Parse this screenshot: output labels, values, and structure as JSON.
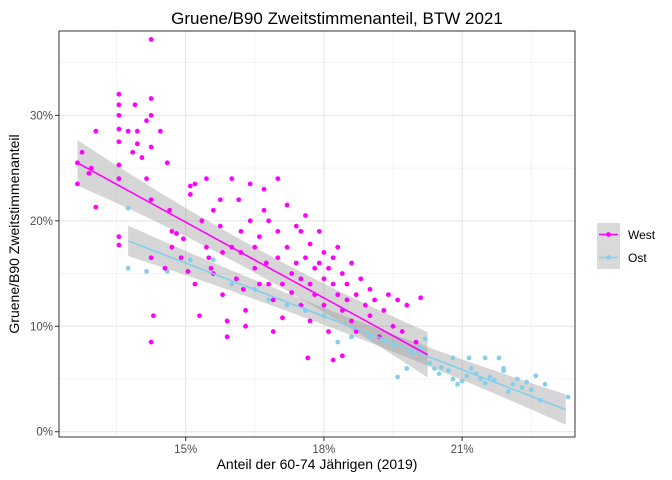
{
  "chart_data": {
    "type": "scatter",
    "title": "Gruene/B90 Zweitstimmenanteil, BTW 2021",
    "xlabel": "Anteil der 60-74 Jährigen (2019)",
    "ylabel": "Gruene/B90 Zweitstimmenanteil",
    "xlim": [
      0.1225,
      0.2345
    ],
    "ylim": [
      -0.005,
      0.38
    ],
    "x_ticks": [
      {
        "value": 0.15,
        "label": "15%"
      },
      {
        "value": 0.18,
        "label": "18%"
      },
      {
        "value": 0.21,
        "label": "21%"
      }
    ],
    "y_ticks": [
      {
        "value": 0.0,
        "label": "0%"
      },
      {
        "value": 0.1,
        "label": "10%"
      },
      {
        "value": 0.2,
        "label": "20%"
      },
      {
        "value": 0.3,
        "label": "30%"
      }
    ],
    "grid": true,
    "legend_position": "right",
    "series": [
      {
        "name": "West",
        "color": "#ff00ff",
        "trend": {
          "x": [
            0.1265,
            0.2025
          ],
          "y": [
            0.255,
            0.073
          ],
          "band": 0.012
        },
        "points": [
          [
            0.1265,
            0.255
          ],
          [
            0.1265,
            0.235
          ],
          [
            0.1275,
            0.265
          ],
          [
            0.129,
            0.245
          ],
          [
            0.1295,
            0.25
          ],
          [
            0.1305,
            0.285
          ],
          [
            0.1305,
            0.213
          ],
          [
            0.1355,
            0.32
          ],
          [
            0.1355,
            0.31
          ],
          [
            0.1355,
            0.3
          ],
          [
            0.1355,
            0.287
          ],
          [
            0.1355,
            0.275
          ],
          [
            0.1355,
            0.253
          ],
          [
            0.1355,
            0.24
          ],
          [
            0.1355,
            0.185
          ],
          [
            0.1355,
            0.177
          ],
          [
            0.1375,
            0.285
          ],
          [
            0.1385,
            0.265
          ],
          [
            0.139,
            0.31
          ],
          [
            0.1395,
            0.285
          ],
          [
            0.1395,
            0.273
          ],
          [
            0.1405,
            0.26
          ],
          [
            0.1415,
            0.295
          ],
          [
            0.1415,
            0.24
          ],
          [
            0.1425,
            0.372
          ],
          [
            0.1425,
            0.316
          ],
          [
            0.1425,
            0.3
          ],
          [
            0.1425,
            0.27
          ],
          [
            0.1425,
            0.22
          ],
          [
            0.1425,
            0.165
          ],
          [
            0.1425,
            0.085
          ],
          [
            0.143,
            0.11
          ],
          [
            0.1445,
            0.285
          ],
          [
            0.1455,
            0.155
          ],
          [
            0.146,
            0.255
          ],
          [
            0.147,
            0.19
          ],
          [
            0.147,
            0.175
          ],
          [
            0.148,
            0.188
          ],
          [
            0.149,
            0.165
          ],
          [
            0.1495,
            0.183
          ],
          [
            0.151,
            0.233
          ],
          [
            0.151,
            0.225
          ],
          [
            0.152,
            0.235
          ],
          [
            0.152,
            0.14
          ],
          [
            0.153,
            0.11
          ],
          [
            0.1535,
            0.2
          ],
          [
            0.1545,
            0.24
          ],
          [
            0.1545,
            0.175
          ],
          [
            0.155,
            0.165
          ],
          [
            0.156,
            0.21
          ],
          [
            0.156,
            0.15
          ],
          [
            0.1575,
            0.22
          ],
          [
            0.1575,
            0.195
          ],
          [
            0.158,
            0.17
          ],
          [
            0.158,
            0.13
          ],
          [
            0.159,
            0.105
          ],
          [
            0.159,
            0.09
          ],
          [
            0.16,
            0.24
          ],
          [
            0.16,
            0.175
          ],
          [
            0.161,
            0.145
          ],
          [
            0.1615,
            0.22
          ],
          [
            0.162,
            0.19
          ],
          [
            0.162,
            0.17
          ],
          [
            0.1625,
            0.135
          ],
          [
            0.163,
            0.115
          ],
          [
            0.163,
            0.1
          ],
          [
            0.164,
            0.235
          ],
          [
            0.164,
            0.2
          ],
          [
            0.165,
            0.175
          ],
          [
            0.165,
            0.155
          ],
          [
            0.166,
            0.185
          ],
          [
            0.166,
            0.14
          ],
          [
            0.167,
            0.23
          ],
          [
            0.167,
            0.21
          ],
          [
            0.1675,
            0.16
          ],
          [
            0.168,
            0.2
          ],
          [
            0.168,
            0.14
          ],
          [
            0.169,
            0.125
          ],
          [
            0.169,
            0.095
          ],
          [
            0.17,
            0.24
          ],
          [
            0.17,
            0.19
          ],
          [
            0.17,
            0.165
          ],
          [
            0.171,
            0.14
          ],
          [
            0.171,
            0.108
          ],
          [
            0.172,
            0.215
          ],
          [
            0.172,
            0.175
          ],
          [
            0.173,
            0.15
          ],
          [
            0.173,
            0.132
          ],
          [
            0.174,
            0.195
          ],
          [
            0.174,
            0.16
          ],
          [
            0.175,
            0.19
          ],
          [
            0.175,
            0.145
          ],
          [
            0.175,
            0.12
          ],
          [
            0.176,
            0.205
          ],
          [
            0.176,
            0.165
          ],
          [
            0.177,
            0.178
          ],
          [
            0.177,
            0.14
          ],
          [
            0.177,
            0.105
          ],
          [
            0.178,
            0.155
          ],
          [
            0.178,
            0.13
          ],
          [
            0.179,
            0.19
          ],
          [
            0.179,
            0.16
          ],
          [
            0.18,
            0.17
          ],
          [
            0.18,
            0.145
          ],
          [
            0.18,
            0.12
          ],
          [
            0.181,
            0.155
          ],
          [
            0.181,
            0.095
          ],
          [
            0.182,
            0.165
          ],
          [
            0.182,
            0.14
          ],
          [
            0.183,
            0.175
          ],
          [
            0.183,
            0.13
          ],
          [
            0.184,
            0.15
          ],
          [
            0.184,
            0.115
          ],
          [
            0.185,
            0.14
          ],
          [
            0.185,
            0.125
          ],
          [
            0.186,
            0.16
          ],
          [
            0.186,
            0.105
          ],
          [
            0.187,
            0.13
          ],
          [
            0.187,
            0.095
          ],
          [
            0.188,
            0.145
          ],
          [
            0.189,
            0.12
          ],
          [
            0.19,
            0.135
          ],
          [
            0.19,
            0.11
          ],
          [
            0.191,
            0.125
          ],
          [
            0.192,
            0.09
          ],
          [
            0.193,
            0.115
          ],
          [
            0.194,
            0.13
          ],
          [
            0.195,
            0.1
          ],
          [
            0.196,
            0.125
          ],
          [
            0.197,
            0.095
          ],
          [
            0.198,
            0.12
          ],
          [
            0.2,
            0.085
          ],
          [
            0.201,
            0.127
          ],
          [
            0.1765,
            0.07
          ],
          [
            0.182,
            0.068
          ],
          [
            0.184,
            0.072
          ],
          [
            0.1555,
            0.155
          ],
          [
            0.1465,
            0.21
          ],
          [
            0.1505,
            0.152
          ]
        ]
      },
      {
        "name": "Ost",
        "color": "#87ceeb",
        "trend": {
          "x": [
            0.1375,
            0.2325
          ],
          "y": [
            0.181,
            0.021
          ],
          "band": 0.008
        },
        "points": [
          [
            0.1375,
            0.212
          ],
          [
            0.1375,
            0.155
          ],
          [
            0.1415,
            0.152
          ],
          [
            0.146,
            0.152
          ],
          [
            0.151,
            0.163
          ],
          [
            0.156,
            0.163
          ],
          [
            0.16,
            0.14
          ],
          [
            0.165,
            0.135
          ],
          [
            0.168,
            0.125
          ],
          [
            0.172,
            0.12
          ],
          [
            0.176,
            0.115
          ],
          [
            0.18,
            0.11
          ],
          [
            0.183,
            0.085
          ],
          [
            0.186,
            0.09
          ],
          [
            0.19,
            0.09
          ],
          [
            0.193,
            0.085
          ],
          [
            0.195,
            0.082
          ],
          [
            0.196,
            0.052
          ],
          [
            0.198,
            0.06
          ],
          [
            0.199,
            0.075
          ],
          [
            0.201,
            0.079
          ],
          [
            0.202,
            0.088
          ],
          [
            0.203,
            0.065
          ],
          [
            0.204,
            0.06
          ],
          [
            0.205,
            0.055
          ],
          [
            0.207,
            0.058
          ],
          [
            0.208,
            0.05
          ],
          [
            0.209,
            0.045
          ],
          [
            0.21,
            0.048
          ],
          [
            0.211,
            0.053
          ],
          [
            0.212,
            0.06
          ],
          [
            0.213,
            0.055
          ],
          [
            0.214,
            0.05
          ],
          [
            0.215,
            0.046
          ],
          [
            0.216,
            0.052
          ],
          [
            0.217,
            0.049
          ],
          [
            0.218,
            0.07
          ],
          [
            0.219,
            0.06
          ],
          [
            0.22,
            0.038
          ],
          [
            0.221,
            0.045
          ],
          [
            0.222,
            0.05
          ],
          [
            0.223,
            0.042
          ],
          [
            0.224,
            0.047
          ],
          [
            0.225,
            0.04
          ],
          [
            0.226,
            0.053
          ],
          [
            0.227,
            0.03
          ],
          [
            0.228,
            0.045
          ],
          [
            0.233,
            0.033
          ],
          [
            0.208,
            0.07
          ],
          [
            0.215,
            0.07
          ],
          [
            0.219,
            0.058
          ],
          [
            0.2115,
            0.07
          ],
          [
            0.2055,
            0.061
          ]
        ]
      }
    ]
  }
}
